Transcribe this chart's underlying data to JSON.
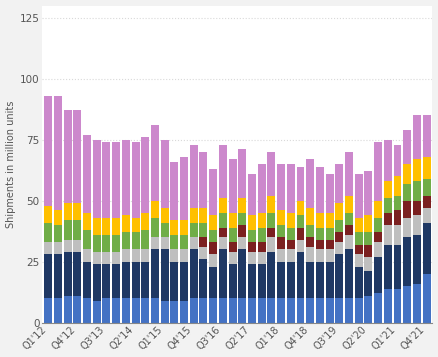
{
  "categories": [
    "Q1'12",
    "Q2'12",
    "Q3'12",
    "Q4'12",
    "Q1'13",
    "Q2'13",
    "Q3'13",
    "Q4'13",
    "Q1'14",
    "Q2'14",
    "Q3'14",
    "Q4'14",
    "Q1'15",
    "Q2'15",
    "Q3'15",
    "Q4'15",
    "Q1'16",
    "Q2'16",
    "Q3'16",
    "Q4'16",
    "Q1'17",
    "Q2'17",
    "Q3'17",
    "Q4'17",
    "Q1'18",
    "Q2'18",
    "Q3'18",
    "Q4'18",
    "Q1'19",
    "Q2'19",
    "Q3'19",
    "Q4'19",
    "Q1'20",
    "Q2'20",
    "Q3'20",
    "Q4'20",
    "Q1'21",
    "Q2'21",
    "Q3'21",
    "Q4'21"
  ],
  "tick_labels": [
    "Q1'12",
    "",
    "",
    "Q4'12",
    "",
    "",
    "Q3'13",
    "",
    "",
    "Q2'14",
    "",
    "",
    "Q1'15",
    "",
    "",
    "Q4'15",
    "",
    "",
    "Q3'16",
    "",
    "",
    "Q2'17",
    "",
    "",
    "Q1'18",
    "",
    "",
    "Q4'18",
    "",
    "",
    "Q3'19",
    "",
    "",
    "Q2'20",
    "",
    "",
    "Q1'21",
    "",
    "",
    "Q4'21"
  ],
  "series": {
    "blue": [
      10,
      10,
      11,
      11,
      10,
      9,
      10,
      10,
      10,
      10,
      10,
      10,
      9,
      9,
      9,
      10,
      10,
      10,
      10,
      10,
      10,
      10,
      10,
      10,
      10,
      10,
      10,
      10,
      10,
      10,
      10,
      10,
      10,
      11,
      12,
      14,
      14,
      15,
      16,
      20
    ],
    "navy": [
      18,
      18,
      18,
      18,
      15,
      15,
      14,
      14,
      15,
      15,
      15,
      20,
      21,
      16,
      16,
      20,
      16,
      13,
      20,
      14,
      20,
      14,
      14,
      19,
      15,
      15,
      19,
      15,
      15,
      15,
      18,
      20,
      13,
      10,
      15,
      18,
      18,
      20,
      20,
      21
    ],
    "gray": [
      5,
      5,
      5,
      5,
      5,
      5,
      5,
      5,
      5,
      5,
      5,
      5,
      5,
      5,
      5,
      5,
      5,
      5,
      5,
      5,
      5,
      5,
      5,
      6,
      5,
      5,
      5,
      6,
      5,
      5,
      5,
      6,
      5,
      6,
      6,
      8,
      8,
      8,
      8,
      6
    ],
    "darkred": [
      0,
      0,
      0,
      0,
      0,
      0,
      0,
      0,
      0,
      0,
      0,
      0,
      0,
      0,
      0,
      0,
      4,
      5,
      4,
      4,
      5,
      4,
      4,
      4,
      5,
      4,
      5,
      4,
      4,
      4,
      4,
      4,
      4,
      5,
      4,
      5,
      6,
      7,
      6,
      5
    ],
    "green": [
      8,
      7,
      8,
      8,
      8,
      7,
      7,
      7,
      7,
      7,
      8,
      8,
      6,
      6,
      6,
      6,
      6,
      5,
      6,
      6,
      5,
      5,
      6,
      6,
      5,
      5,
      5,
      5,
      5,
      5,
      5,
      5,
      5,
      5,
      6,
      6,
      6,
      7,
      8,
      7
    ],
    "orange": [
      7,
      6,
      7,
      7,
      7,
      7,
      7,
      7,
      7,
      6,
      7,
      7,
      6,
      6,
      6,
      6,
      6,
      6,
      6,
      6,
      6,
      6,
      6,
      7,
      6,
      6,
      6,
      7,
      6,
      6,
      7,
      7,
      6,
      7,
      7,
      7,
      8,
      8,
      9,
      9
    ],
    "violet": [
      45,
      47,
      38,
      38,
      32,
      32,
      31,
      31,
      31,
      31,
      31,
      31,
      28,
      24,
      26,
      26,
      23,
      19,
      22,
      22,
      20,
      17,
      20,
      18,
      19,
      20,
      14,
      20,
      19,
      16,
      16,
      18,
      18,
      18,
      24,
      17,
      13,
      14,
      18,
      17
    ]
  },
  "colors": {
    "blue": "#4472c4",
    "navy": "#1f3864",
    "gray": "#bfbfbf",
    "darkred": "#7b2020",
    "green": "#70ad47",
    "orange": "#ffc000",
    "violet": "#cc88cc"
  },
  "ylabel": "Shipments in million units",
  "ylim": [
    0,
    130
  ],
  "yticks": [
    0,
    25,
    50,
    75,
    100,
    125
  ],
  "background_color": "#f2f2f2",
  "plot_bg": "#ffffff",
  "grid_color": "#d9d9d9"
}
